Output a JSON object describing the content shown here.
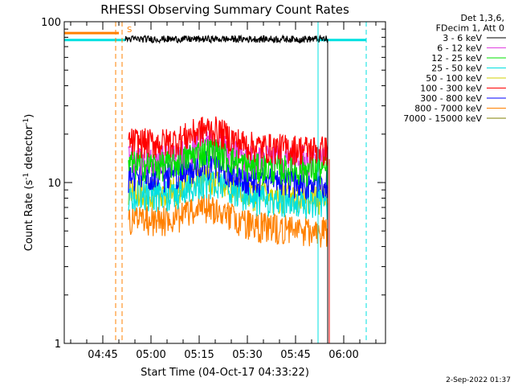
{
  "chart_data": {
    "type": "line",
    "title": "RHESSI Observing Summary Count Rates",
    "xlabel": "Start Time (04-Oct-17 04:33:22)",
    "ylabel": "Count Rate (s",
    "ylabel_sup": "-1",
    "ylabel_tail": " detector",
    "ylabel_tail_sup": "-1",
    "ylabel_close": ")",
    "y_scale": "log",
    "ylim": [
      1,
      100
    ],
    "y_ticks": [
      {
        "value": 1,
        "label": "1"
      },
      {
        "value": 10,
        "label": "10"
      },
      {
        "value": 100,
        "label": "100"
      }
    ],
    "xlim_minutes": [
      0,
      100
    ],
    "x_ticks": [
      {
        "minute": 12,
        "label": "04:45"
      },
      {
        "minute": 27,
        "label": "05:00"
      },
      {
        "minute": 42,
        "label": "05:15"
      },
      {
        "minute": 57,
        "label": "05:30"
      },
      {
        "minute": 72,
        "label": "05:45"
      },
      {
        "minute": 87,
        "label": "06:00"
      }
    ],
    "legend_header": [
      "Det 1,3,6,",
      "FDecim 1, Att 0"
    ],
    "legend_position": "right",
    "series": [
      {
        "name": "3 - 6 keV",
        "color": "#000000",
        "segments": [
          {
            "x": [
              19,
              82
            ],
            "y": [
              78,
              78
            ]
          }
        ]
      },
      {
        "name": "6 - 12 keV",
        "color": "#e040e0",
        "segments": [
          {
            "x": [
              20,
              82
            ],
            "y": [
              14,
              14
            ]
          }
        ]
      },
      {
        "name": "12 - 25 keV",
        "color": "#00e000",
        "segments": [
          {
            "x": [
              20,
              82
            ],
            "y": [
              13,
              12
            ]
          }
        ]
      },
      {
        "name": "25 - 50 keV",
        "color": "#00e0e0",
        "segments": [
          {
            "x": [
              0,
              19
            ],
            "y": [
              77,
              77
            ]
          },
          {
            "x": [
              20,
              82
            ],
            "y": [
              8.5,
              7.5
            ]
          },
          {
            "x": [
              79,
              94
            ],
            "y": [
              77,
              77
            ]
          }
        ]
      },
      {
        "name": "50 - 100 keV",
        "color": "#d0d000",
        "segments": [
          {
            "x": [
              20,
              82
            ],
            "y": [
              9,
              8
            ]
          }
        ]
      },
      {
        "name": "100 - 300 keV",
        "color": "#ff0000",
        "segments": [
          {
            "x": [
              20,
              82
            ],
            "y": [
              18,
              16
            ]
          }
        ]
      },
      {
        "name": "300 - 800 keV",
        "color": "#0000ff",
        "segments": [
          {
            "x": [
              20,
              82
            ],
            "y": [
              11,
              10
            ]
          }
        ]
      },
      {
        "name": "800 - 7000 keV",
        "color": "#ff8000",
        "segments": [
          {
            "x": [
              0,
              17
            ],
            "y": [
              85,
              85
            ]
          },
          {
            "x": [
              20,
              82
            ],
            "y": [
              6,
              5
            ]
          }
        ]
      },
      {
        "name": "7000 - 15000 keV",
        "color": "#808000",
        "segments": []
      }
    ],
    "vertical_lines": [
      {
        "minute": 16,
        "color": "#ff8000",
        "style": "dashed"
      },
      {
        "minute": 18,
        "color": "#ff8000",
        "style": "dashed"
      },
      {
        "minute": 79,
        "color": "#00e0e0",
        "style": "solid"
      },
      {
        "minute": 94,
        "color": "#00e0e0",
        "style": "dashed"
      }
    ],
    "marker_label": "S",
    "grid": false
  },
  "footer": {
    "timestamp": "2-Sep-2022 01:37"
  }
}
